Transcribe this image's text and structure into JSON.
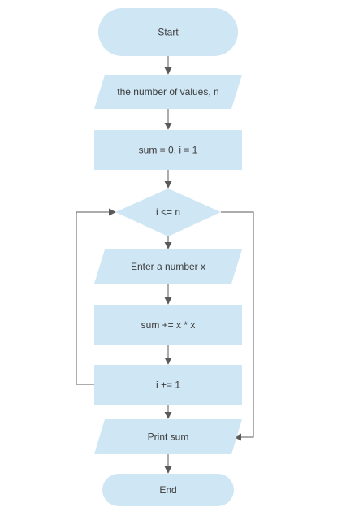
{
  "diagram": {
    "type": "flowchart",
    "colors": {
      "node_fill": "#cfe6f4",
      "edge": "#5a5a5a",
      "text": "#3b3b3b",
      "background": "#ffffff"
    },
    "nodes": [
      {
        "id": "start",
        "shape": "terminator",
        "label": "Start"
      },
      {
        "id": "input-n",
        "shape": "parallelogram",
        "label": "the number of values, n"
      },
      {
        "id": "init",
        "shape": "process",
        "label": "sum = 0, i = 1"
      },
      {
        "id": "cond",
        "shape": "decision",
        "label": "i <= n"
      },
      {
        "id": "input-x",
        "shape": "parallelogram",
        "label": "Enter a number x"
      },
      {
        "id": "accumulate",
        "shape": "process",
        "label": "sum += x * x"
      },
      {
        "id": "increment",
        "shape": "process",
        "label": "i += 1"
      },
      {
        "id": "output",
        "shape": "parallelogram",
        "label": "Print sum"
      },
      {
        "id": "end",
        "shape": "terminator",
        "label": "End"
      }
    ],
    "edges": [
      {
        "from": "start",
        "to": "input-n"
      },
      {
        "from": "input-n",
        "to": "init"
      },
      {
        "from": "init",
        "to": "cond"
      },
      {
        "from": "cond",
        "to": "input-x"
      },
      {
        "from": "input-x",
        "to": "accumulate"
      },
      {
        "from": "accumulate",
        "to": "increment"
      },
      {
        "from": "increment",
        "to": "cond"
      },
      {
        "from": "increment",
        "to": "output"
      },
      {
        "from": "cond",
        "to": "output"
      },
      {
        "from": "output",
        "to": "end"
      }
    ]
  }
}
